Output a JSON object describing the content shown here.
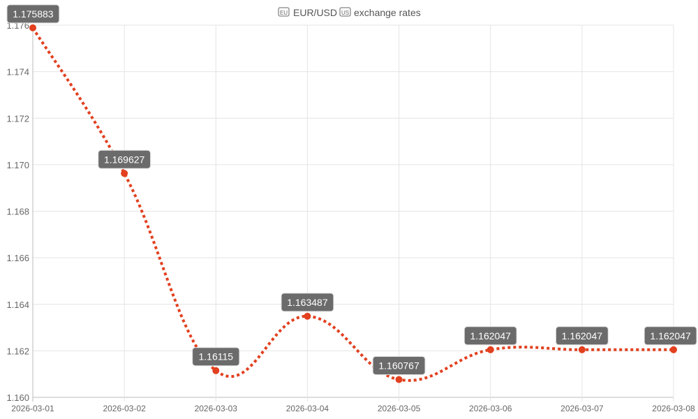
{
  "chart_data": {
    "type": "line",
    "title": "🇪🇺 EUR/USD 🇺🇸 exchange rates",
    "title_parts": {
      "flag1": "EU",
      "pair": "EUR/USD",
      "flag2": "US",
      "suffix": "exchange rates"
    },
    "xlabel": "",
    "ylabel": "",
    "categories": [
      "2026-03-01",
      "2026-03-02",
      "2026-03-03",
      "2026-03-04",
      "2026-03-05",
      "2026-03-06",
      "2026-03-07",
      "2026-03-08"
    ],
    "series": [
      {
        "name": "EUR/USD",
        "values": [
          1.175883,
          1.169627,
          1.16115,
          1.163487,
          1.160767,
          1.162047,
          1.162047,
          1.162047
        ],
        "labels": [
          "1.175883",
          "1.169627",
          "1.16115",
          "1.163487",
          "1.160767",
          "1.162047",
          "1.162047",
          "1.162047"
        ],
        "color": "#e2401f",
        "line_style": "dotted",
        "smooth": true
      }
    ],
    "ylim": [
      1.16,
      1.176
    ],
    "yticks": [
      "1.160",
      "1.162",
      "1.164",
      "1.166",
      "1.168",
      "1.170",
      "1.172",
      "1.174",
      "1.176"
    ],
    "grid": true,
    "legend": "none",
    "data_label_bg": "#6b6b6b"
  }
}
